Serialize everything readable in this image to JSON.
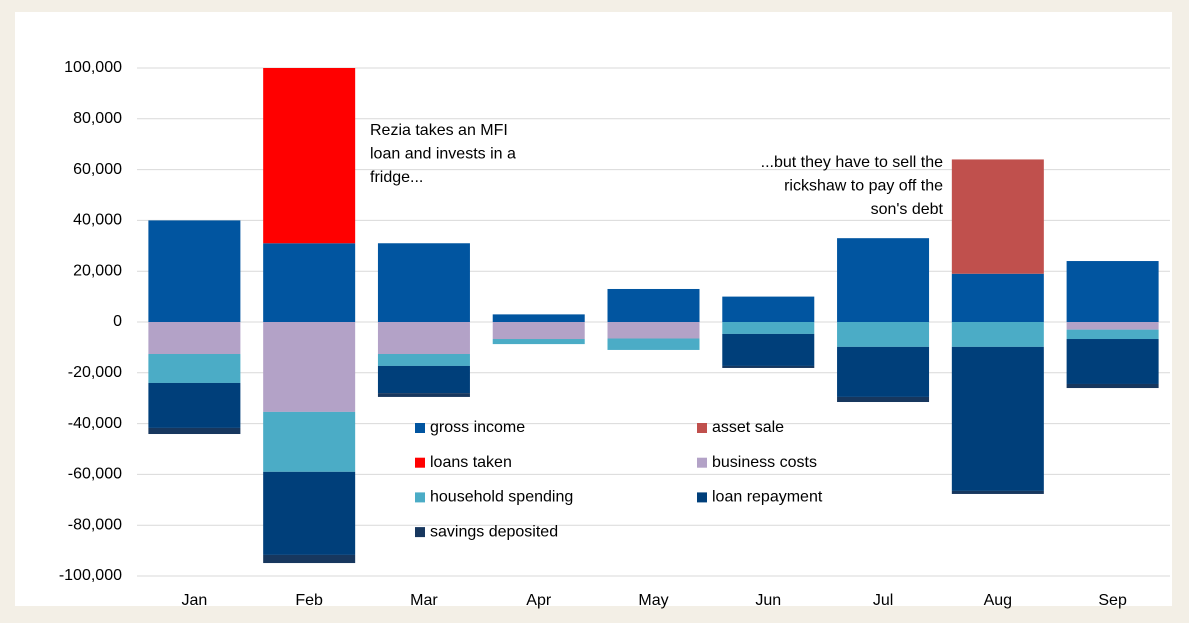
{
  "chart_data": {
    "type": "stacked_bar",
    "categories": [
      "Jan",
      "Feb",
      "Mar",
      "Apr",
      "May",
      "Jun",
      "Jul",
      "Aug",
      "Sep"
    ],
    "series": [
      {
        "name": "gross income",
        "color": "#0155a0",
        "values": [
          40000,
          31000,
          31000,
          3000,
          13000,
          10000,
          33000,
          19000,
          24000
        ]
      },
      {
        "name": "asset sale",
        "color": "#c0504d",
        "values": [
          0,
          0,
          0,
          0,
          0,
          0,
          0,
          45000,
          0
        ]
      },
      {
        "name": "loans taken",
        "color": "#ff0000",
        "values": [
          0,
          69000,
          0,
          0,
          0,
          0,
          0,
          0,
          0
        ]
      },
      {
        "name": "business costs",
        "color": "#b3a2c7",
        "values": [
          -12600,
          -35400,
          -12600,
          -6700,
          -6500,
          0,
          0,
          0,
          -3000
        ]
      },
      {
        "name": "household spending",
        "color": "#4bacc6",
        "values": [
          -11400,
          -23600,
          -4700,
          -2000,
          -4500,
          -4700,
          -9800,
          -9800,
          -3700
        ]
      },
      {
        "name": "loan repayment",
        "color": "#003f7a",
        "values": [
          -17700,
          -32700,
          -10700,
          0,
          0,
          -12600,
          -19700,
          -56700,
          -17700
        ]
      },
      {
        "name": "savings deposited",
        "color": "#17375e",
        "values": [
          -2400,
          -3200,
          -1500,
          0,
          0,
          -800,
          -2000,
          -1200,
          -1600
        ]
      }
    ],
    "ylim": [
      -100000,
      100000
    ],
    "yticks": [
      {
        "value": -100000,
        "label": "-100,000"
      },
      {
        "value": -80000,
        "label": "-80,000"
      },
      {
        "value": -60000,
        "label": "-60,000"
      },
      {
        "value": -40000,
        "label": "-40,000"
      },
      {
        "value": -20000,
        "label": "-20,000"
      },
      0,
      {
        "value": 20000,
        "label": "20,000"
      },
      {
        "value": 40000,
        "label": "40,000"
      },
      {
        "value": 60000,
        "label": "60,000"
      },
      {
        "value": 80000,
        "label": "80,000"
      },
      {
        "value": 100000,
        "label": "100,000"
      }
    ],
    "grid": true,
    "annotations": [
      {
        "lines": [
          "Rezia takes an MFI",
          "loan and invests in a",
          "fridge..."
        ]
      },
      {
        "lines": [
          "...but they have to sell the",
          "rickshaw to pay off the",
          "son's debt"
        ]
      }
    ]
  }
}
